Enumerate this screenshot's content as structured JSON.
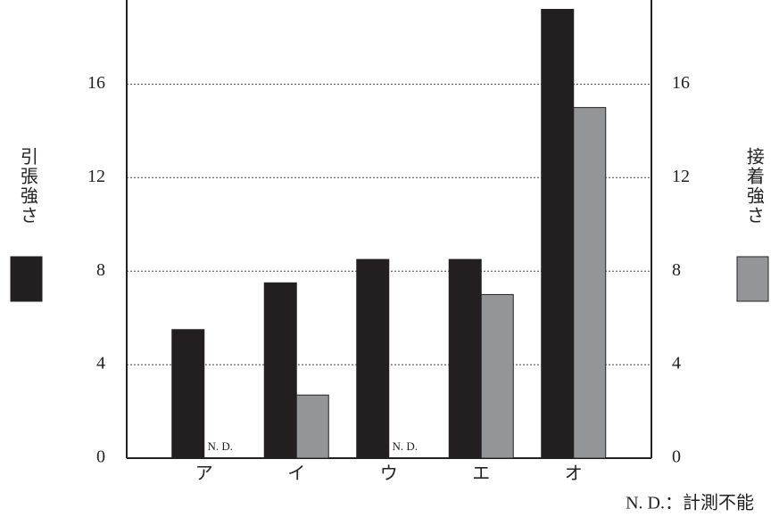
{
  "chart_data": {
    "type": "bar",
    "categories": [
      "ア",
      "イ",
      "ウ",
      "エ",
      "オ"
    ],
    "series": [
      {
        "name": "引張強さ",
        "color": "#231f20",
        "values": [
          5.5,
          7.5,
          8.5,
          8.5,
          19.2
        ]
      },
      {
        "name": "接着強さ",
        "color": "#939598",
        "axis": "y2",
        "values": [
          null,
          2.7,
          null,
          7.0,
          15.0
        ],
        "value_labels": [
          "N. D.",
          null,
          "N. D.",
          null,
          null
        ]
      }
    ],
    "ylim": [
      0,
      19.6
    ],
    "yticks": [
      0,
      4,
      8,
      12,
      16
    ],
    "y2lim": [
      0,
      19.6
    ],
    "y2ticks": [
      0,
      4,
      8,
      12,
      16
    ],
    "grid": true,
    "note": "N. D.：計測不能"
  }
}
